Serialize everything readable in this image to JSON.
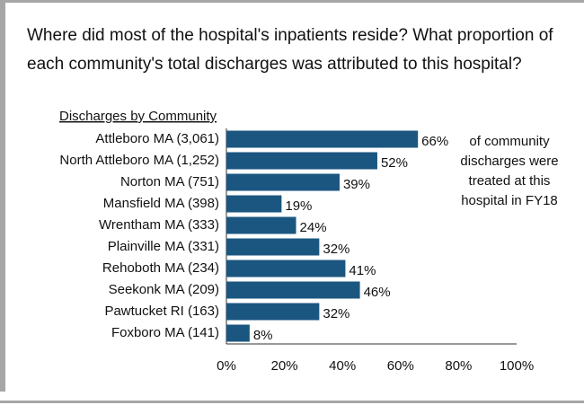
{
  "chart_data": {
    "type": "bar",
    "orientation": "horizontal",
    "title": [
      "Where did most of the hospital's inpatients reside? What proportion of",
      "each community's total discharges was attributed to this hospital?"
    ],
    "y_axis_label": "Discharges by Community",
    "annotation": [
      "of community",
      "discharges were",
      "treated at this",
      "hospital in FY18"
    ],
    "categories": [
      "Attleboro MA (3,061)",
      "North Attleboro MA (1,252)",
      "Norton MA (751)",
      "Mansfield MA (398)",
      "Wrentham MA (333)",
      "Plainville MA (331)",
      "Rehoboth MA (234)",
      "Seekonk MA (209)",
      "Pawtucket RI (163)",
      "Foxboro MA (141)"
    ],
    "values": [
      66,
      52,
      39,
      19,
      24,
      32,
      41,
      46,
      32,
      8
    ],
    "value_labels": [
      "66%",
      "52%",
      "39%",
      "19%",
      "24%",
      "32%",
      "41%",
      "46%",
      "32%",
      "8%"
    ],
    "color": "#1b5680",
    "xlim": [
      0,
      100
    ],
    "xticks": [
      {
        "value": 0,
        "label": "0%"
      },
      {
        "value": 20,
        "label": "20%"
      },
      {
        "value": 40,
        "label": "40%"
      },
      {
        "value": 60,
        "label": "60%"
      },
      {
        "value": 80,
        "label": "80%"
      },
      {
        "value": 100,
        "label": "100%"
      }
    ],
    "grid": false
  }
}
